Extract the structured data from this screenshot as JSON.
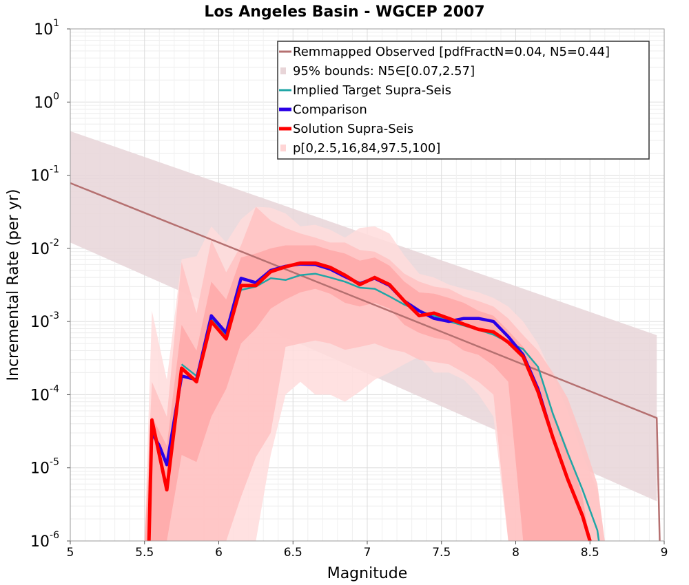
{
  "chart_data": {
    "type": "line",
    "title": "Los Angeles Basin - WGCEP 2007",
    "xlabel": "Magnitude",
    "ylabel": "Incremental Rate (per yr)",
    "xlim": [
      5,
      9
    ],
    "ylim": [
      1e-06,
      10
    ],
    "yscale": "log",
    "x_ticks": [
      {
        "v": 5,
        "label": "5"
      },
      {
        "v": 5.5,
        "label": "5.5"
      },
      {
        "v": 6,
        "label": "6"
      },
      {
        "v": 6.5,
        "label": "6.5"
      },
      {
        "v": 7,
        "label": "7"
      },
      {
        "v": 7.5,
        "label": "7.5"
      },
      {
        "v": 8,
        "label": "8"
      },
      {
        "v": 8.5,
        "label": "8.5"
      },
      {
        "v": 9,
        "label": "9"
      }
    ],
    "y_ticks": [
      {
        "v": 10,
        "base": "10",
        "exp": "1"
      },
      {
        "v": 1,
        "base": "10",
        "exp": "0"
      },
      {
        "v": 0.1,
        "base": "10",
        "exp": "-1"
      },
      {
        "v": 0.01,
        "base": "10",
        "exp": "-2"
      },
      {
        "v": 0.001,
        "base": "10",
        "exp": "-3"
      },
      {
        "v": 0.0001,
        "base": "10",
        "exp": "-4"
      },
      {
        "v": 1e-05,
        "base": "10",
        "exp": "-5"
      },
      {
        "v": 1e-06,
        "base": "10",
        "exp": "-6"
      }
    ],
    "grid": true,
    "legend_position": "top-right",
    "legend": [
      {
        "label": "Remmapped Observed [pdfFractN=0.04, N5=0.44]",
        "kind": "line",
        "color": "#b57070"
      },
      {
        "label": "95% bounds: N5∈[0.07,2.57]",
        "kind": "band",
        "color": "#e8d5d8"
      },
      {
        "label": "Implied Target Supra-Seis",
        "kind": "line",
        "color": "#20a6a6"
      },
      {
        "label": "Comparison",
        "kind": "line",
        "color": "#2a00e6"
      },
      {
        "label": "Solution Supra-Seis",
        "kind": "line",
        "color": "#ff0000"
      },
      {
        "label": "p[0,2.5,16,84,97.5,100]",
        "kind": "band",
        "color": "#ffd5d5"
      }
    ],
    "series": [
      {
        "name": "Remmapped Observed [pdfFractN=0.04, N5=0.44]",
        "color": "#b57070",
        "x": [
          5.0,
          8.95,
          8.97
        ],
        "y": [
          0.078,
          4.8e-05,
          1e-06
        ]
      },
      {
        "name": "Implied Target Supra-Seis",
        "color": "#20a6a6",
        "x": [
          5.75,
          5.85,
          5.95,
          6.05,
          6.15,
          6.25,
          6.35,
          6.45,
          6.55,
          6.65,
          6.75,
          6.85,
          6.95,
          7.05,
          7.15,
          7.25,
          7.35,
          7.45,
          7.55,
          7.65,
          7.75,
          7.85,
          7.95,
          8.05,
          8.15,
          8.25,
          8.35,
          8.45,
          8.55,
          8.56
        ],
        "y": [
          0.00026,
          0.00018,
          0.0011,
          0.00065,
          0.0027,
          0.003,
          0.0039,
          0.0037,
          0.0043,
          0.0045,
          0.004,
          0.0035,
          0.0029,
          0.0028,
          0.0022,
          0.0017,
          0.0014,
          0.0012,
          0.001,
          0.00088,
          0.00077,
          0.00066,
          0.00052,
          0.00042,
          0.00024,
          5.5e-05,
          1.6e-05,
          5e-06,
          1.4e-06,
          1e-06
        ]
      },
      {
        "name": "Comparison",
        "color": "#2a00e6",
        "x": [
          5.55,
          5.6,
          5.65,
          5.75,
          5.85,
          5.95,
          6.05,
          6.15,
          6.25,
          6.35,
          6.45,
          6.55,
          6.65,
          6.75,
          6.85,
          6.95,
          7.05,
          7.15,
          7.25,
          7.35,
          7.45,
          7.55,
          7.65,
          7.75,
          7.85,
          7.95,
          8.05,
          8.15,
          8.25,
          8.35,
          8.45,
          8.5
        ],
        "y": [
          3e-05,
          2e-05,
          1.1e-05,
          0.00018,
          0.00016,
          0.0012,
          0.0007,
          0.0039,
          0.0034,
          0.005,
          0.0057,
          0.0061,
          0.006,
          0.0052,
          0.0041,
          0.0033,
          0.0039,
          0.0031,
          0.0019,
          0.0014,
          0.0011,
          0.001,
          0.0011,
          0.0011,
          0.001,
          0.00062,
          0.00035,
          0.00012,
          2.6e-05,
          7e-06,
          2.2e-06,
          1e-06
        ]
      },
      {
        "name": "Solution Supra-Seis",
        "color": "#ff0000",
        "x": [
          5.53,
          5.55,
          5.6,
          5.65,
          5.75,
          5.85,
          5.95,
          6.05,
          6.15,
          6.25,
          6.35,
          6.45,
          6.55,
          6.65,
          6.75,
          6.85,
          6.95,
          7.05,
          7.15,
          7.25,
          7.35,
          7.45,
          7.55,
          7.65,
          7.75,
          7.85,
          7.95,
          8.05,
          8.15,
          8.25,
          8.35,
          8.45,
          8.5
        ],
        "y": [
          1e-06,
          4.5e-05,
          1.5e-05,
          5e-06,
          0.00023,
          0.00015,
          0.001,
          0.00058,
          0.0031,
          0.0031,
          0.0048,
          0.0056,
          0.0063,
          0.0063,
          0.0055,
          0.0043,
          0.0032,
          0.004,
          0.0032,
          0.0019,
          0.0012,
          0.0013,
          0.0011,
          0.00092,
          0.00078,
          0.00072,
          0.00052,
          0.00033,
          0.00011,
          2.6e-05,
          7e-06,
          2.2e-06,
          1e-06
        ]
      }
    ],
    "bands": [
      {
        "name": "95% bounds: N5∈[0.07,2.57]",
        "color": "#e8d5d8",
        "x": [
          5.0,
          8.95
        ],
        "upper": [
          0.4,
          0.00065
        ],
        "lower": [
          0.012,
          3.5e-06
        ]
      },
      {
        "name": "p[0,100]",
        "color": "#ffdcdc",
        "x": [
          5.5,
          5.55,
          5.65,
          5.75,
          5.85,
          5.95,
          6.05,
          6.15,
          6.25,
          6.35,
          6.45,
          6.55,
          6.65,
          6.75,
          6.85,
          6.95,
          7.05,
          7.15,
          7.25,
          7.35,
          7.45,
          7.55,
          7.65,
          7.75,
          7.85,
          7.95,
          8.05,
          8.15,
          8.25,
          8.35,
          8.45,
          8.55,
          8.6
        ],
        "upper": [
          1e-06,
          0.0014,
          0.00016,
          0.0071,
          0.0078,
          0.02,
          0.012,
          0.025,
          0.037,
          0.036,
          0.03,
          0.02,
          0.021,
          0.018,
          0.014,
          0.019,
          0.02,
          0.016,
          0.008,
          0.0045,
          0.004,
          0.0032,
          0.0028,
          0.0025,
          0.0021,
          0.0016,
          0.001,
          0.0005,
          0.00018,
          6e-05,
          1.5e-05,
          5e-06,
          1e-06
        ],
        "lower": [
          1e-06,
          1e-06,
          1e-06,
          1e-06,
          1e-06,
          1e-06,
          1e-06,
          1e-06,
          1e-06,
          1.5e-05,
          0.0001,
          0.00015,
          0.0001,
          0.0001,
          8e-05,
          0.00011,
          0.00016,
          0.0002,
          0.00026,
          0.00033,
          0.0002,
          0.0002,
          0.00016,
          0.0001,
          5e-05,
          1e-06,
          1e-06,
          1e-06,
          1e-06,
          1e-06,
          1e-06,
          1e-06,
          1e-06
        ]
      },
      {
        "name": "p[2.5,97.5]",
        "color": "#ffc2c2",
        "x": [
          5.5,
          5.55,
          5.65,
          5.75,
          5.85,
          5.95,
          6.05,
          6.15,
          6.25,
          6.35,
          6.45,
          6.55,
          6.65,
          6.75,
          6.85,
          6.95,
          7.05,
          7.15,
          7.25,
          7.35,
          7.45,
          7.55,
          7.65,
          7.75,
          7.85,
          7.95,
          8.05,
          8.15,
          8.25,
          8.35,
          8.45,
          8.55,
          8.6
        ],
        "upper": [
          1e-06,
          0.00015,
          5e-05,
          0.0065,
          0.0013,
          0.013,
          0.0047,
          0.011,
          0.037,
          0.024,
          0.019,
          0.016,
          0.014,
          0.012,
          0.012,
          0.0095,
          0.009,
          0.007,
          0.0045,
          0.0035,
          0.003,
          0.0028,
          0.0022,
          0.0019,
          0.0016,
          0.0011,
          0.00065,
          0.0004,
          0.0002,
          9e-05,
          2.5e-05,
          6e-06,
          1e-06
        ],
        "lower": [
          1e-06,
          1e-06,
          1e-06,
          1e-06,
          1e-06,
          1e-06,
          1e-06,
          4e-06,
          1.4e-05,
          3e-05,
          0.00045,
          0.0005,
          0.00055,
          0.0005,
          0.00041,
          0.00045,
          0.0005,
          0.00042,
          0.00038,
          0.0003,
          0.00028,
          0.00026,
          0.0002,
          0.00015,
          0.0001,
          1e-06,
          1e-06,
          1e-06,
          1e-06,
          1e-06,
          1e-06,
          1e-06,
          1e-06
        ]
      },
      {
        "name": "p[16,84]",
        "color": "#ffa8a8",
        "x": [
          5.5,
          5.55,
          5.65,
          5.75,
          5.85,
          5.95,
          6.05,
          6.15,
          6.25,
          6.35,
          6.45,
          6.55,
          6.65,
          6.75,
          6.85,
          6.95,
          7.05,
          7.15,
          7.25,
          7.35,
          7.45,
          7.55,
          7.65,
          7.75,
          7.85,
          7.95,
          8.05,
          8.15,
          8.25,
          8.35,
          8.45,
          8.5
        ],
        "upper": [
          1e-06,
          5e-05,
          2e-05,
          0.0009,
          0.0004,
          0.0035,
          0.002,
          0.0075,
          0.0085,
          0.01,
          0.011,
          0.011,
          0.011,
          0.0095,
          0.0085,
          0.0068,
          0.0075,
          0.0058,
          0.0035,
          0.0025,
          0.0024,
          0.0021,
          0.0018,
          0.0014,
          0.0012,
          0.00075,
          0.00045,
          0.00022,
          6e-05,
          1.8e-05,
          4e-06,
          1e-06
        ],
        "lower": [
          1e-06,
          1e-06,
          1e-06,
          1.5e-05,
          1.2e-05,
          5e-05,
          0.00012,
          0.0005,
          0.0008,
          0.0015,
          0.002,
          0.0025,
          0.0028,
          0.0024,
          0.0018,
          0.0016,
          0.0018,
          0.0015,
          0.0009,
          0.0007,
          0.0006,
          0.00055,
          0.0004,
          0.00035,
          0.00025,
          0.00015,
          1e-06,
          1e-06,
          1e-06,
          1e-06,
          1e-06,
          1e-06
        ]
      }
    ]
  }
}
